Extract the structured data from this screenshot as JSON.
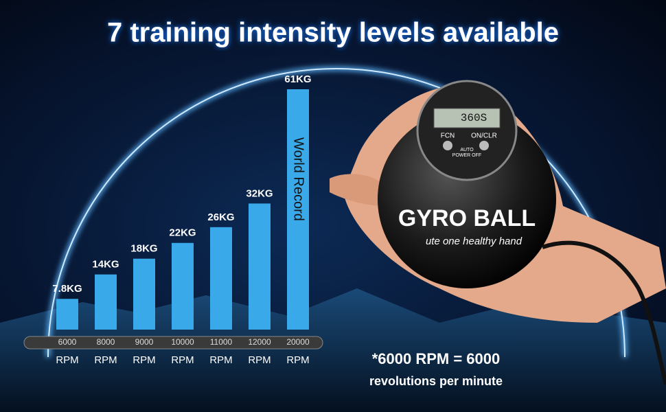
{
  "chart_data": {
    "type": "bar",
    "title": "7 training intensity levels available",
    "categories": [
      "6000",
      "8000",
      "9000",
      "10000",
      "11000",
      "12000",
      "20000"
    ],
    "x_unit": "RPM",
    "values": [
      7.8,
      14,
      18,
      22,
      26,
      32,
      61
    ],
    "value_labels": [
      "7.8KG",
      "14KG",
      "18KG",
      "22KG",
      "26KG",
      "32KG",
      "61KG"
    ],
    "color": "#3aa9ea",
    "annotation": "World Record",
    "footnote": [
      "*6000 RPM = 6000",
      "revolutions per minute"
    ]
  },
  "product": {
    "screen": "360S",
    "buttons": [
      "FCN",
      "ON/CLR"
    ],
    "auto_off": [
      "AUTO",
      "POWER OFF"
    ],
    "brand": "GYRO BALL",
    "slogan": "ute one healthy hand"
  }
}
